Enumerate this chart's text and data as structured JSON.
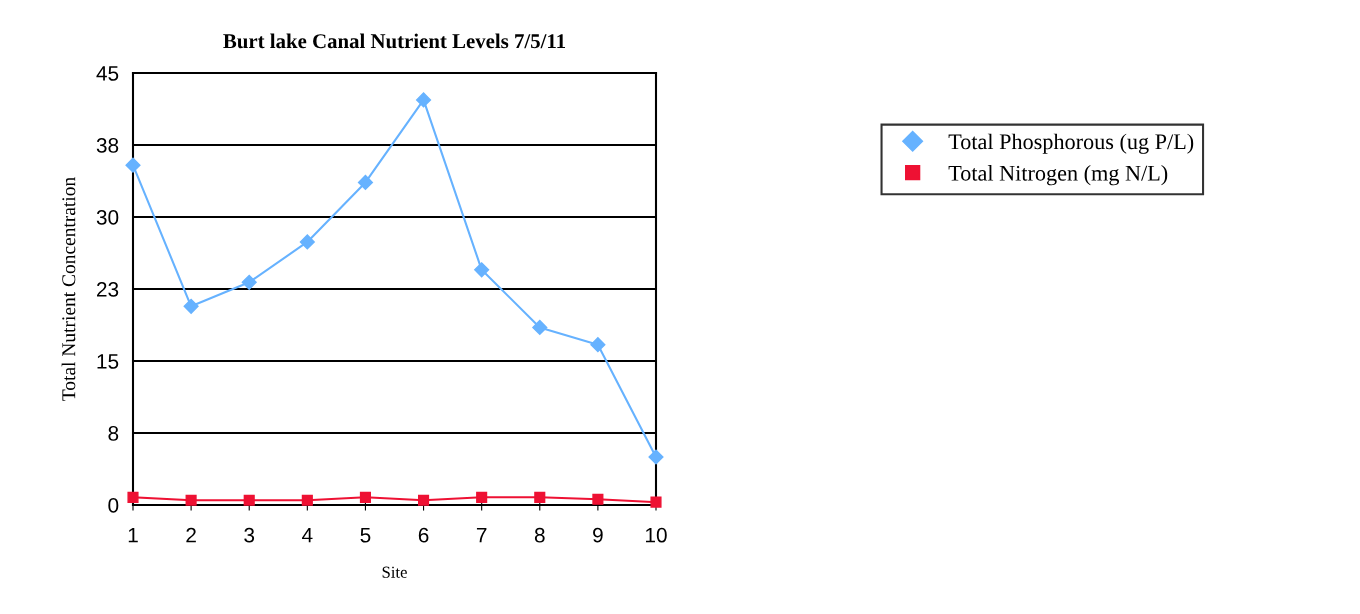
{
  "chart_data": {
    "type": "line",
    "title": "Burt lake Canal Nutrient Levels 7/5/11",
    "xlabel": "Site",
    "ylabel": "Total Nutrient Concentration",
    "categories": [
      "1",
      "2",
      "3",
      "4",
      "5",
      "6",
      "7",
      "8",
      "9",
      "10"
    ],
    "series": [
      {
        "name": "Total Phosphorous (ug P/L)",
        "color": "#66b2ff",
        "marker": "diamond",
        "values": [
          35.4,
          20.7,
          23.2,
          27.4,
          33.6,
          42.2,
          24.5,
          18.5,
          16.7,
          5.0
        ]
      },
      {
        "name": "Total Nitrogen (mg N/L)",
        "color": "#ee1133",
        "marker": "square",
        "values": [
          0.8,
          0.5,
          0.5,
          0.5,
          0.8,
          0.5,
          0.8,
          0.8,
          0.6,
          0.3
        ]
      }
    ],
    "ylim": [
      0,
      45
    ],
    "yticks": [
      0,
      {
        "value": 7.5,
        "label": "8"
      },
      15,
      {
        "value": 22.5,
        "label": "23"
      },
      30,
      {
        "value": 37.5,
        "label": "38"
      },
      45
    ],
    "grid": "y",
    "legend": "right",
    "line_style": "solid"
  }
}
